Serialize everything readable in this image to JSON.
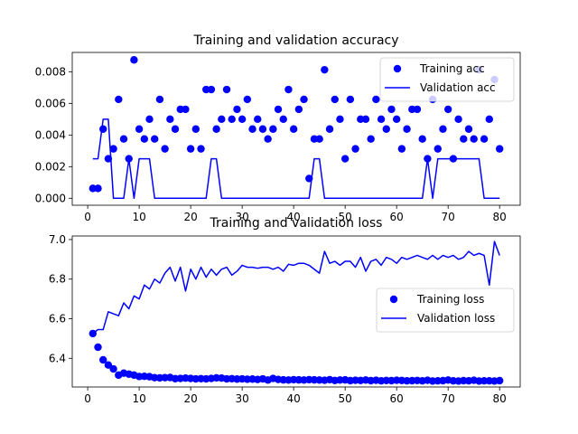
{
  "chart_data": [
    {
      "type": "line",
      "title": "Training and validation accuracy",
      "xlim": [
        -3,
        84
      ],
      "ylim": [
        -0.00044,
        0.00922
      ],
      "xticks": [
        0,
        10,
        20,
        30,
        40,
        50,
        60,
        70,
        80
      ],
      "yticks": [
        0.0,
        0.002,
        0.004,
        0.006,
        0.008
      ],
      "ytick_decimals": 3,
      "legend_position": "upper right",
      "series": [
        {
          "name": "Training acc",
          "style": "points",
          "color": "#0000ff",
          "x": [
            1,
            2,
            3,
            4,
            5,
            6,
            7,
            8,
            9,
            10,
            11,
            12,
            13,
            14,
            15,
            16,
            17,
            18,
            19,
            20,
            21,
            22,
            23,
            24,
            25,
            26,
            27,
            28,
            29,
            30,
            31,
            32,
            33,
            34,
            35,
            36,
            37,
            38,
            39,
            40,
            41,
            42,
            43,
            44,
            45,
            46,
            47,
            48,
            49,
            50,
            51,
            52,
            53,
            54,
            55,
            56,
            57,
            58,
            59,
            60,
            61,
            62,
            63,
            64,
            65,
            66,
            67,
            68,
            69,
            70,
            71,
            72,
            73,
            74,
            75,
            76,
            77,
            78,
            79,
            80
          ],
          "y": [
            0.000625,
            0.000625,
            0.004375,
            0.0025,
            0.003125,
            0.00625,
            0.00375,
            0.0025,
            0.00875,
            0.004375,
            0.00375,
            0.005,
            0.00375,
            0.00625,
            0.003125,
            0.005,
            0.004375,
            0.005625,
            0.005625,
            0.003125,
            0.004375,
            0.003125,
            0.006875,
            0.006875,
            0.004375,
            0.005,
            0.006875,
            0.005,
            0.005625,
            0.005,
            0.00625,
            0.004375,
            0.005,
            0.004375,
            0.00375,
            0.004375,
            0.005625,
            0.005,
            0.006875,
            0.004375,
            0.005625,
            0.00625,
            0.00125,
            0.00375,
            0.00375,
            0.008125,
            0.004375,
            0.00625,
            0.005,
            0.0025,
            0.00625,
            0.003125,
            0.005,
            0.005,
            0.00375,
            0.00625,
            0.005,
            0.004375,
            0.005625,
            0.005,
            0.003125,
            0.004375,
            0.005625,
            0.005625,
            0.00375,
            0.0025,
            0.00625,
            0.003125,
            0.004375,
            0.005625,
            0.0025,
            0.005,
            0.00375,
            0.004375,
            0.00375,
            0.008125,
            0.00375,
            0.005,
            0.0075,
            0.003125
          ]
        },
        {
          "name": "Validation acc",
          "style": "line",
          "color": "#0000ff",
          "x": [
            1,
            2,
            3,
            4,
            5,
            6,
            7,
            8,
            9,
            10,
            11,
            12,
            13,
            14,
            15,
            16,
            17,
            18,
            19,
            20,
            21,
            22,
            23,
            24,
            25,
            26,
            27,
            28,
            29,
            30,
            31,
            32,
            33,
            34,
            35,
            36,
            37,
            38,
            39,
            40,
            41,
            42,
            43,
            44,
            45,
            46,
            47,
            48,
            49,
            50,
            51,
            52,
            53,
            54,
            55,
            56,
            57,
            58,
            59,
            60,
            61,
            62,
            63,
            64,
            65,
            66,
            67,
            68,
            69,
            70,
            71,
            72,
            73,
            74,
            75,
            76,
            77,
            78,
            79,
            80
          ],
          "y": [
            0.0025,
            0.0025,
            0.005,
            0.005,
            0,
            0,
            0,
            0.0025,
            0,
            0.0025,
            0.0025,
            0.0025,
            0,
            0,
            0,
            0,
            0,
            0,
            0,
            0,
            0,
            0,
            0,
            0.0025,
            0.0025,
            0,
            0,
            0,
            0,
            0,
            0,
            0,
            0,
            0,
            0,
            0,
            0,
            0,
            0,
            0,
            0,
            0,
            0,
            0.0025,
            0.0025,
            0,
            0,
            0,
            0,
            0,
            0,
            0,
            0,
            0,
            0,
            0,
            0,
            0,
            0,
            0,
            0,
            0,
            0,
            0,
            0,
            0.0025,
            0,
            0.0025,
            0.0025,
            0.0025,
            0.0025,
            0.0025,
            0.0025,
            0.0025,
            0.0025,
            0.0025,
            0,
            0,
            0,
            0
          ]
        }
      ]
    },
    {
      "type": "line",
      "title": "Training and validation loss",
      "xlim": [
        -3,
        84
      ],
      "ylim": [
        6.255,
        7.018
      ],
      "xticks": [
        0,
        10,
        20,
        30,
        40,
        50,
        60,
        70,
        80
      ],
      "yticks": [
        6.4,
        6.6,
        6.8,
        7.0
      ],
      "ytick_decimals": 1,
      "legend_position": "center right",
      "series": [
        {
          "name": "Training loss",
          "style": "points",
          "color": "#0000ff",
          "x": [
            1,
            2,
            3,
            4,
            5,
            6,
            7,
            8,
            9,
            10,
            11,
            12,
            13,
            14,
            15,
            16,
            17,
            18,
            19,
            20,
            21,
            22,
            23,
            24,
            25,
            26,
            27,
            28,
            29,
            30,
            31,
            32,
            33,
            34,
            35,
            36,
            37,
            38,
            39,
            40,
            41,
            42,
            43,
            44,
            45,
            46,
            47,
            48,
            49,
            50,
            51,
            52,
            53,
            54,
            55,
            56,
            57,
            58,
            59,
            60,
            61,
            62,
            63,
            64,
            65,
            66,
            67,
            68,
            69,
            70,
            71,
            72,
            73,
            74,
            75,
            76,
            77,
            78,
            79,
            80
          ],
          "y": [
            6.525,
            6.456,
            6.392,
            6.366,
            6.346,
            6.315,
            6.325,
            6.32,
            6.315,
            6.308,
            6.309,
            6.307,
            6.302,
            6.301,
            6.302,
            6.303,
            6.297,
            6.298,
            6.3,
            6.298,
            6.296,
            6.297,
            6.296,
            6.298,
            6.301,
            6.3,
            6.296,
            6.297,
            6.295,
            6.296,
            6.294,
            6.295,
            6.293,
            6.296,
            6.29,
            6.298,
            6.293,
            6.291,
            6.29,
            6.292,
            6.291,
            6.29,
            6.292,
            6.291,
            6.29,
            6.289,
            6.292,
            6.288,
            6.29,
            6.291,
            6.287,
            6.289,
            6.288,
            6.29,
            6.287,
            6.289,
            6.286,
            6.288,
            6.287,
            6.289,
            6.288,
            6.286,
            6.287,
            6.288,
            6.286,
            6.289,
            6.285,
            6.286,
            6.287,
            6.29,
            6.286,
            6.285,
            6.287,
            6.286,
            6.289,
            6.285,
            6.286,
            6.286,
            6.285,
            6.287
          ]
        },
        {
          "name": "Validation loss",
          "style": "line",
          "color": "#0000ff",
          "x": [
            1,
            2,
            3,
            4,
            5,
            6,
            7,
            8,
            9,
            10,
            11,
            12,
            13,
            14,
            15,
            16,
            17,
            18,
            19,
            20,
            21,
            22,
            23,
            24,
            25,
            26,
            27,
            28,
            29,
            30,
            31,
            32,
            33,
            34,
            35,
            36,
            37,
            38,
            39,
            40,
            41,
            42,
            43,
            44,
            45,
            46,
            47,
            48,
            49,
            50,
            51,
            52,
            53,
            54,
            55,
            56,
            57,
            58,
            59,
            60,
            61,
            62,
            63,
            64,
            65,
            66,
            67,
            68,
            69,
            70,
            71,
            72,
            73,
            74,
            75,
            76,
            77,
            78,
            79,
            80
          ],
          "y": [
            6.525,
            6.545,
            6.545,
            6.635,
            6.625,
            6.615,
            6.68,
            6.65,
            6.715,
            6.7,
            6.77,
            6.75,
            6.8,
            6.78,
            6.83,
            6.86,
            6.79,
            6.86,
            6.74,
            6.85,
            6.8,
            6.86,
            6.81,
            6.85,
            6.82,
            6.85,
            6.86,
            6.82,
            6.84,
            6.87,
            6.86,
            6.86,
            6.855,
            6.86,
            6.86,
            6.85,
            6.86,
            6.84,
            6.875,
            6.87,
            6.88,
            6.88,
            6.87,
            6.85,
            6.83,
            6.94,
            6.88,
            6.89,
            6.87,
            6.89,
            6.89,
            6.86,
            6.91,
            6.84,
            6.89,
            6.9,
            6.87,
            6.91,
            6.9,
            6.88,
            6.91,
            6.9,
            6.91,
            6.92,
            6.91,
            6.9,
            6.92,
            6.9,
            6.92,
            6.91,
            6.92,
            6.9,
            6.91,
            6.94,
            6.92,
            6.93,
            6.92,
            6.77,
            6.99,
            6.92
          ]
        }
      ]
    }
  ]
}
